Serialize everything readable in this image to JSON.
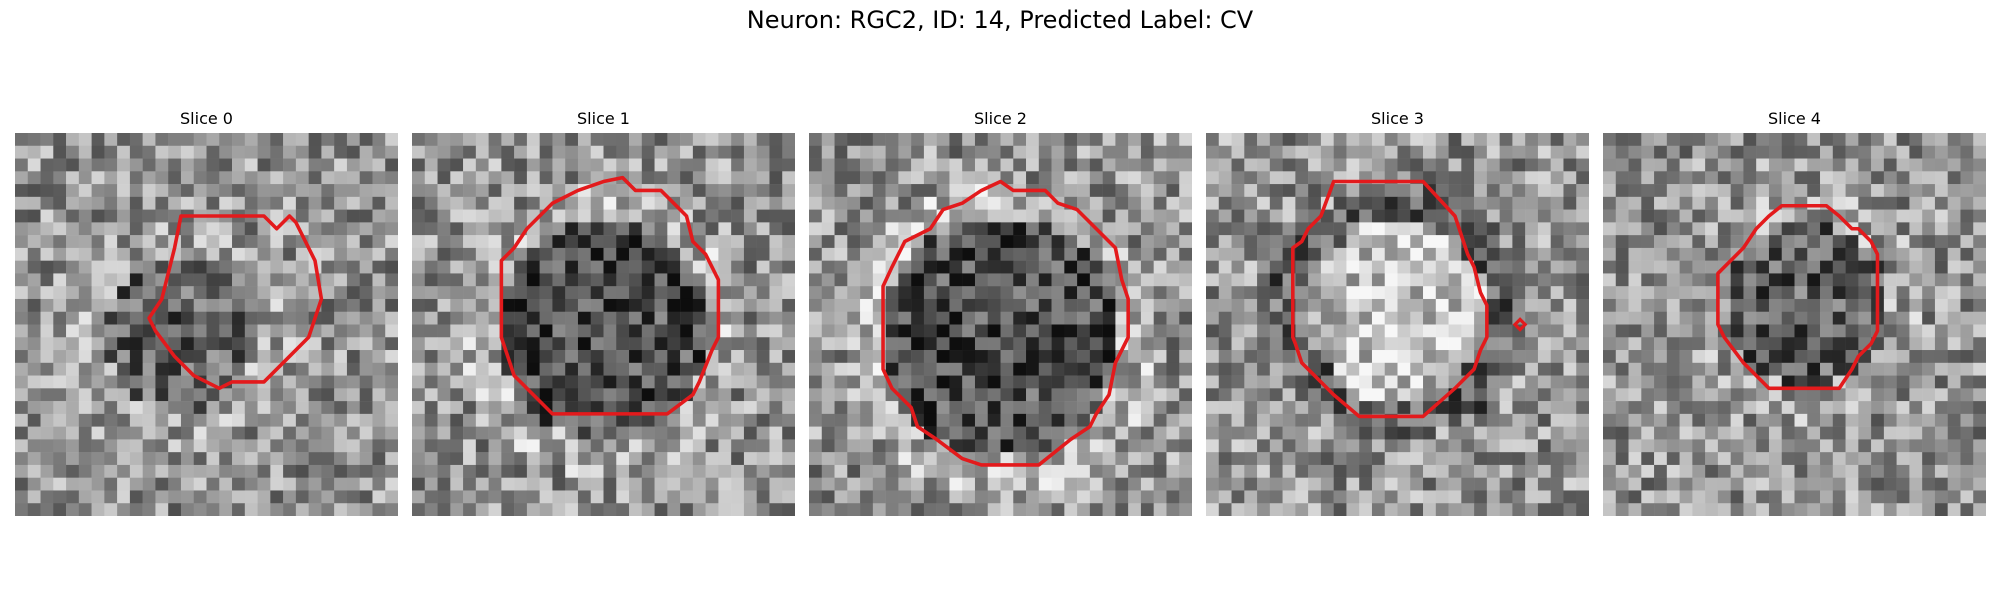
{
  "figure": {
    "title": "Neuron: RGC2, ID: 14, Predicted Label: CV"
  },
  "panels": [
    {
      "label": "Slice 0"
    },
    {
      "label": "Slice 1"
    },
    {
      "label": "Slice 2"
    },
    {
      "label": "Slice 3"
    },
    {
      "label": "Slice 4"
    }
  ],
  "colors": {
    "contour": "#e31a1c",
    "background": "#ffffff"
  }
}
